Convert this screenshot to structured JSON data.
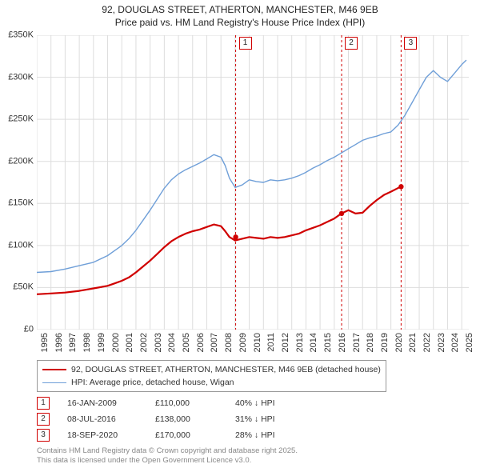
{
  "title_line1": "92, DOUGLAS STREET, ATHERTON, MANCHESTER, M46 9EB",
  "title_line2": "Price paid vs. HM Land Registry's House Price Index (HPI)",
  "chart": {
    "type": "line",
    "background_color": "#ffffff",
    "grid_color": "#dddddd",
    "text_color": "#333333",
    "label_fontsize": 11,
    "x_start_year": 1995,
    "x_end_year": 2025.5,
    "ylim": [
      0,
      350000
    ],
    "ytick_step": 50000,
    "y_tick_labels": [
      "£0",
      "£50K",
      "£100K",
      "£150K",
      "£200K",
      "£250K",
      "£300K",
      "£350K"
    ],
    "x_tick_years": [
      1995,
      1996,
      1997,
      1998,
      1999,
      2000,
      2001,
      2002,
      2003,
      2004,
      2005,
      2006,
      2007,
      2008,
      2009,
      2010,
      2011,
      2012,
      2013,
      2014,
      2015,
      2016,
      2017,
      2018,
      2019,
      2020,
      2021,
      2022,
      2023,
      2024,
      2025
    ],
    "series": [
      {
        "name": "price_paid",
        "color": "#d00000",
        "line_width": 2.2,
        "points": [
          [
            1995.0,
            42000
          ],
          [
            1996.0,
            43000
          ],
          [
            1997.0,
            44000
          ],
          [
            1998.0,
            46000
          ],
          [
            1999.0,
            49000
          ],
          [
            2000.0,
            52000
          ],
          [
            2000.5,
            55000
          ],
          [
            2001.0,
            58000
          ],
          [
            2001.5,
            62000
          ],
          [
            2002.0,
            68000
          ],
          [
            2002.5,
            75000
          ],
          [
            2003.0,
            82000
          ],
          [
            2003.5,
            90000
          ],
          [
            2004.0,
            98000
          ],
          [
            2004.5,
            105000
          ],
          [
            2005.0,
            110000
          ],
          [
            2005.5,
            114000
          ],
          [
            2006.0,
            117000
          ],
          [
            2006.5,
            119000
          ],
          [
            2007.0,
            122000
          ],
          [
            2007.5,
            125000
          ],
          [
            2008.0,
            123000
          ],
          [
            2008.3,
            117000
          ],
          [
            2008.6,
            110000
          ],
          [
            2009.0,
            106000
          ],
          [
            2009.5,
            108000
          ],
          [
            2010.0,
            110000
          ],
          [
            2010.5,
            109000
          ],
          [
            2011.0,
            108000
          ],
          [
            2011.5,
            110000
          ],
          [
            2012.0,
            109000
          ],
          [
            2012.5,
            110000
          ],
          [
            2013.0,
            112000
          ],
          [
            2013.5,
            114000
          ],
          [
            2014.0,
            118000
          ],
          [
            2014.5,
            121000
          ],
          [
            2015.0,
            124000
          ],
          [
            2015.5,
            128000
          ],
          [
            2016.0,
            132000
          ],
          [
            2016.5,
            138000
          ],
          [
            2017.0,
            142000
          ],
          [
            2017.5,
            138000
          ],
          [
            2018.0,
            139000
          ],
          [
            2018.5,
            147000
          ],
          [
            2019.0,
            154000
          ],
          [
            2019.5,
            160000
          ],
          [
            2020.0,
            164000
          ],
          [
            2020.7,
            170000
          ]
        ],
        "markers": [
          {
            "x": 2009.04,
            "y": 110000
          },
          {
            "x": 2016.52,
            "y": 138000
          },
          {
            "x": 2020.72,
            "y": 170000
          }
        ],
        "marker_radius": 3.2
      },
      {
        "name": "hpi",
        "color": "#6f9fd8",
        "line_width": 1.4,
        "points": [
          [
            1995.0,
            68000
          ],
          [
            1996.0,
            69000
          ],
          [
            1997.0,
            72000
          ],
          [
            1998.0,
            76000
          ],
          [
            1999.0,
            80000
          ],
          [
            2000.0,
            88000
          ],
          [
            2000.5,
            94000
          ],
          [
            2001.0,
            100000
          ],
          [
            2001.5,
            108000
          ],
          [
            2002.0,
            118000
          ],
          [
            2002.5,
            130000
          ],
          [
            2003.0,
            142000
          ],
          [
            2003.5,
            155000
          ],
          [
            2004.0,
            168000
          ],
          [
            2004.5,
            178000
          ],
          [
            2005.0,
            185000
          ],
          [
            2005.5,
            190000
          ],
          [
            2006.0,
            194000
          ],
          [
            2006.5,
            198000
          ],
          [
            2007.0,
            203000
          ],
          [
            2007.5,
            208000
          ],
          [
            2008.0,
            205000
          ],
          [
            2008.3,
            195000
          ],
          [
            2008.6,
            180000
          ],
          [
            2009.0,
            169000
          ],
          [
            2009.5,
            172000
          ],
          [
            2010.0,
            178000
          ],
          [
            2010.5,
            176000
          ],
          [
            2011.0,
            175000
          ],
          [
            2011.5,
            178000
          ],
          [
            2012.0,
            177000
          ],
          [
            2012.5,
            178000
          ],
          [
            2013.0,
            180000
          ],
          [
            2013.5,
            183000
          ],
          [
            2014.0,
            187000
          ],
          [
            2014.5,
            192000
          ],
          [
            2015.0,
            196000
          ],
          [
            2015.5,
            201000
          ],
          [
            2016.0,
            205000
          ],
          [
            2016.5,
            210000
          ],
          [
            2017.0,
            215000
          ],
          [
            2017.5,
            220000
          ],
          [
            2018.0,
            225000
          ],
          [
            2018.5,
            228000
          ],
          [
            2019.0,
            230000
          ],
          [
            2019.5,
            233000
          ],
          [
            2020.0,
            235000
          ],
          [
            2020.5,
            243000
          ],
          [
            2021.0,
            255000
          ],
          [
            2021.5,
            270000
          ],
          [
            2022.0,
            285000
          ],
          [
            2022.5,
            300000
          ],
          [
            2023.0,
            308000
          ],
          [
            2023.5,
            300000
          ],
          [
            2024.0,
            295000
          ],
          [
            2024.5,
            305000
          ],
          [
            2025.0,
            315000
          ],
          [
            2025.3,
            320000
          ]
        ]
      }
    ],
    "event_lines": [
      {
        "num": "1",
        "x": 2009.04,
        "color": "#d00000",
        "dash": "3,3"
      },
      {
        "num": "2",
        "x": 2016.52,
        "color": "#d00000",
        "dash": "3,3"
      },
      {
        "num": "3",
        "x": 2020.72,
        "color": "#d00000",
        "dash": "3,3"
      }
    ]
  },
  "legend": {
    "items": [
      {
        "color": "#d00000",
        "width": 2.2,
        "label": "92, DOUGLAS STREET, ATHERTON, MANCHESTER, M46 9EB (detached house)"
      },
      {
        "color": "#6f9fd8",
        "width": 1.4,
        "label": "HPI: Average price, detached house, Wigan"
      }
    ]
  },
  "events_table": {
    "rows": [
      {
        "num": "1",
        "date": "16-JAN-2009",
        "price": "£110,000",
        "pct": "40% ↓ HPI"
      },
      {
        "num": "2",
        "date": "08-JUL-2016",
        "price": "£138,000",
        "pct": "31% ↓ HPI"
      },
      {
        "num": "3",
        "date": "18-SEP-2020",
        "price": "£170,000",
        "pct": "28% ↓ HPI"
      }
    ]
  },
  "footer_line1": "Contains HM Land Registry data © Crown copyright and database right 2025.",
  "footer_line2": "This data is licensed under the Open Government Licence v3.0."
}
